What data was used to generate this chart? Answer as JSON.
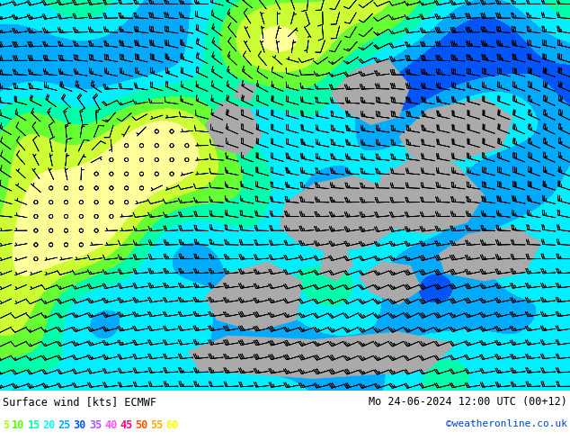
{
  "title_left": "Surface wind [kts] ECMWF",
  "title_right": "Mo 24-06-2024 12:00 UTC (00+12)",
  "credit": "©weatheronline.co.uk",
  "legend_values": [
    "5",
    "10",
    "15",
    "20",
    "25",
    "30",
    "35",
    "40",
    "45",
    "50",
    "55",
    "60"
  ],
  "legend_colors": [
    "#aaff00",
    "#55ff00",
    "#00ffaa",
    "#00ffff",
    "#00aaff",
    "#0055ff",
    "#aa55ff",
    "#ff55ff",
    "#ff0077",
    "#ff5500",
    "#ffaa00",
    "#ffff00"
  ],
  "wind_levels": [
    0,
    5,
    10,
    15,
    20,
    25,
    30,
    35,
    40,
    45,
    50,
    55,
    60,
    200
  ],
  "wind_colors": [
    "#ffff99",
    "#ccff33",
    "#66ff33",
    "#00ffaa",
    "#00eeff",
    "#00aaff",
    "#0055ff",
    "#aa55ff",
    "#ff55ff",
    "#ff0077",
    "#ff5500",
    "#ffaa00",
    "#ffff00"
  ],
  "bg_color": "#ffffff",
  "text_color": "#000000",
  "figsize": [
    6.34,
    4.9
  ],
  "dpi": 100,
  "seed": 42,
  "barb_color": "#000000",
  "land_color": "#aaaaaa"
}
